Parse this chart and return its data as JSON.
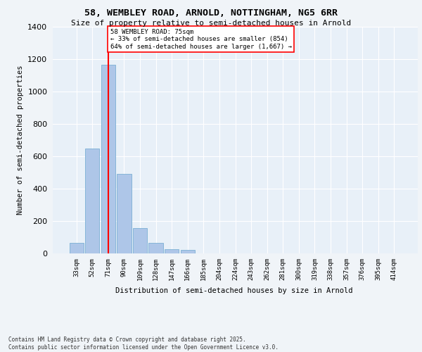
{
  "title1": "58, WEMBLEY ROAD, ARNOLD, NOTTINGHAM, NG5 6RR",
  "title2": "Size of property relative to semi-detached houses in Arnold",
  "xlabel": "Distribution of semi-detached houses by size in Arnold",
  "ylabel": "Number of semi-detached properties",
  "categories": [
    "33sqm",
    "52sqm",
    "71sqm",
    "90sqm",
    "109sqm",
    "128sqm",
    "147sqm",
    "166sqm",
    "185sqm",
    "204sqm",
    "224sqm",
    "243sqm",
    "262sqm",
    "281sqm",
    "300sqm",
    "319sqm",
    "338sqm",
    "357sqm",
    "376sqm",
    "395sqm",
    "414sqm"
  ],
  "values": [
    65,
    645,
    1165,
    490,
    155,
    65,
    25,
    20,
    0,
    0,
    0,
    0,
    0,
    0,
    0,
    0,
    0,
    0,
    0,
    0,
    0
  ],
  "bar_color": "#aec6e8",
  "bar_edgecolor": "#7aafd4",
  "annotation_text_line1": "58 WEMBLEY ROAD: 75sqm",
  "annotation_text_line2": "← 33% of semi-detached houses are smaller (854)",
  "annotation_text_line3": "64% of semi-detached houses are larger (1,667) →",
  "property_line_x": 2,
  "ylim": [
    0,
    1400
  ],
  "yticks": [
    0,
    200,
    400,
    600,
    800,
    1000,
    1200,
    1400
  ],
  "bg_color": "#e8f0f8",
  "grid_color": "#ffffff",
  "fig_bg_color": "#f0f4f8",
  "footer1": "Contains HM Land Registry data © Crown copyright and database right 2025.",
  "footer2": "Contains public sector information licensed under the Open Government Licence v3.0."
}
